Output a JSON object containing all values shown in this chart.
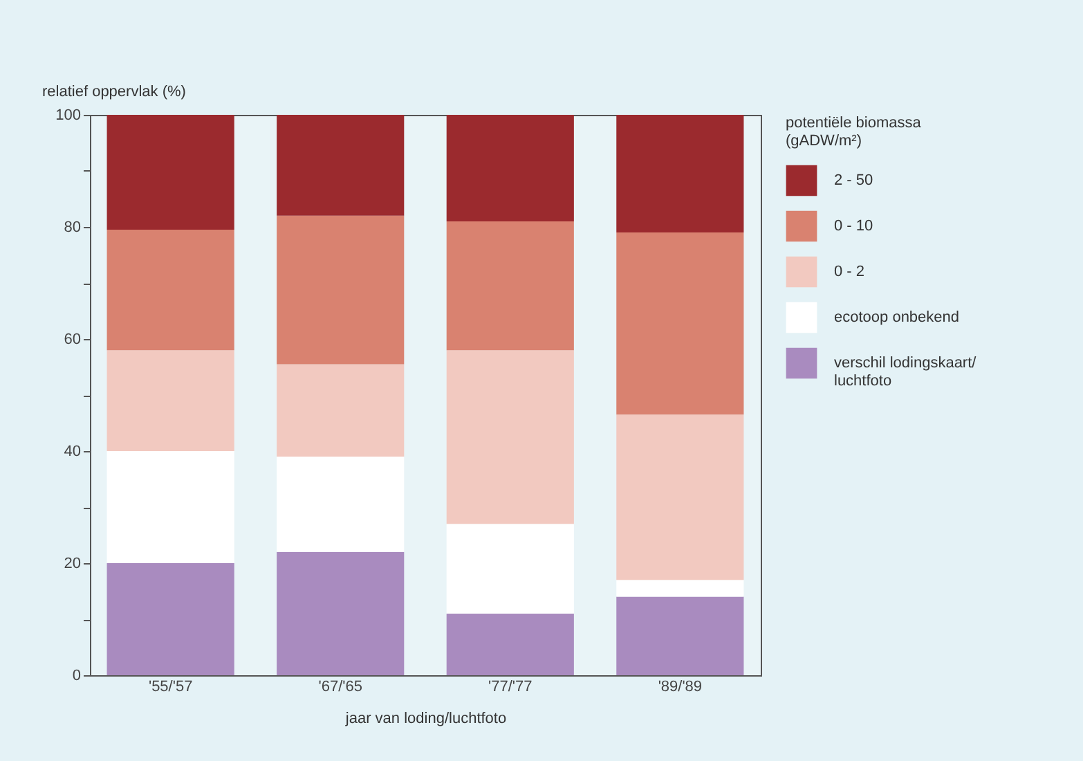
{
  "chart_data": {
    "type": "bar",
    "stacked": true,
    "ylabel": "relatief oppervlak (%)",
    "xlabel": "jaar van loding/luchtfoto",
    "legend_title": "potentiële biomassa (gADW/m²)",
    "categories": [
      "'55/'57",
      "'67/'65",
      "'77/'77",
      "'89/'89"
    ],
    "series": [
      {
        "name": "verschil lodingskaart/ luchtfoto",
        "color": "#a98bbf",
        "values": [
          20,
          22,
          11,
          14
        ]
      },
      {
        "name": "ecotoop onbekend",
        "color": "#ffffff",
        "values": [
          20,
          17,
          16,
          3
        ]
      },
      {
        "name": "0 - 2",
        "color": "#f2c9c0",
        "values": [
          18,
          16.5,
          31,
          29.5
        ]
      },
      {
        "name": "0 - 10",
        "color": "#d98270",
        "values": [
          21.5,
          26.5,
          23,
          32.5
        ]
      },
      {
        "name": "2 - 50",
        "color": "#9b2a2e",
        "values": [
          20.5,
          18,
          19,
          21
        ]
      }
    ],
    "ylim": [
      0,
      100
    ],
    "yticks": [
      0,
      {
        "value": 10,
        "label": null
      },
      20,
      {
        "value": 30,
        "label": null
      },
      40,
      {
        "value": 50,
        "label": null
      },
      60,
      {
        "value": 70,
        "label": null
      },
      80,
      {
        "value": 90,
        "label": null
      },
      100
    ],
    "legend": "right",
    "grid": false
  }
}
